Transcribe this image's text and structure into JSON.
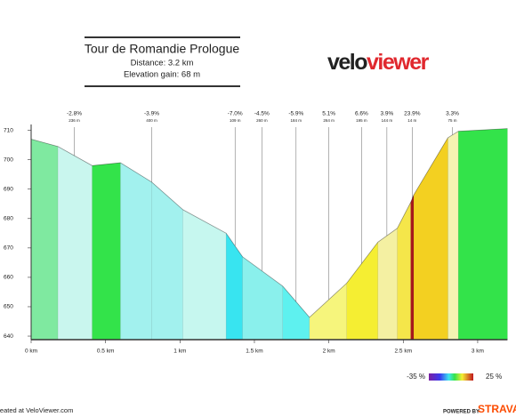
{
  "chart_data": {
    "type": "elevation-profile",
    "title": "Tour de Romandie Prologue",
    "subtitle_lines": [
      "Distance: 3.2 km",
      "Elevation gain: 68 m"
    ],
    "logo_parts": [
      "velo",
      "viewer"
    ],
    "x": [
      0,
      0.18,
      0.41,
      0.6,
      0.81,
      1.02,
      1.31,
      1.42,
      1.69,
      1.87,
      2.12,
      2.33,
      2.46,
      2.55,
      2.57,
      2.8,
      2.87,
      3.2
    ],
    "values": [
      707,
      704.5,
      698,
      699,
      692.4,
      683,
      675,
      667,
      657,
      646.4,
      658,
      672,
      676.7,
      685.5,
      688,
      707.5,
      709.7,
      710.6
    ],
    "segment_colors": [
      "#7fe9a0",
      "#c9f6ee",
      "#33e34a",
      "#a2f1ee",
      "#a2f1ee",
      "#c6f7ef",
      "#38e4f0",
      "#8af0ec",
      "#5ef1ef",
      "#f6f57c",
      "#f5ee32",
      "#f4f0a2",
      "#f5e64a",
      "#a8181c",
      "#f3d021",
      "#f4f3b2",
      "#33e34a"
    ],
    "annotations": [
      {
        "text": "-2.8%",
        "sub": "236 m",
        "x": 0.29
      },
      {
        "text": "-3.9%",
        "sub": "400 m",
        "x": 0.81
      },
      {
        "text": "-7.0%",
        "sub": "109 m",
        "x": 1.37
      },
      {
        "text": "-4.5%",
        "sub": "260 m",
        "x": 1.55
      },
      {
        "text": "-5.9%",
        "sub": "184 m",
        "x": 1.78
      },
      {
        "text": "5.1%",
        "sub": "264 m",
        "x": 2.0
      },
      {
        "text": "6.6%",
        "sub": "195 m",
        "x": 2.22
      },
      {
        "text": "3.9%",
        "sub": "144 m",
        "x": 2.39
      },
      {
        "text": "23.9%",
        "sub": "14 m",
        "x": 2.56
      },
      {
        "text": "3.3%",
        "sub": "75 m",
        "x": 2.83
      }
    ],
    "xlim": [
      0,
      3.2
    ],
    "ylim": [
      638.8,
      712
    ],
    "xticks": [
      {
        "value": 0,
        "label": "0 km"
      },
      {
        "value": 0.5,
        "label": "0.5 km"
      },
      {
        "value": 1,
        "label": "1 km"
      },
      {
        "value": 1.5,
        "label": "1.5 km"
      },
      {
        "value": 2,
        "label": "2 km"
      },
      {
        "value": 2.5,
        "label": "2.5 km"
      },
      {
        "value": 3,
        "label": "3 km"
      }
    ],
    "yticks": [
      640,
      650,
      660,
      670,
      680,
      690,
      700,
      710
    ],
    "colorbar": {
      "min": {
        "value": -35,
        "label": "-35 %"
      },
      "max": {
        "value": 25,
        "label": "25 %"
      }
    },
    "footer_left": "Created at VeloViewer.com",
    "footer_right": [
      "POWERED BY",
      "STRAVA"
    ]
  }
}
